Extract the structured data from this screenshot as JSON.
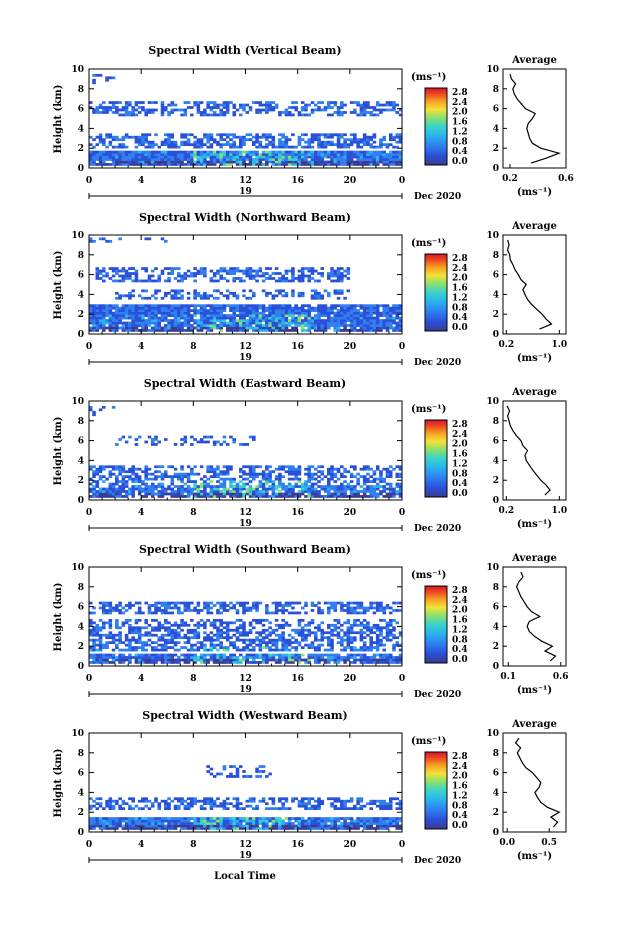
{
  "figure": {
    "date_label": "Dec 2020",
    "day_label": "19",
    "x_axis_label": "Local Time",
    "y_axis_label": "Height (km)",
    "colorbar_unit": "(ms⁻¹)",
    "avg_title": "Average",
    "avg_unit": "(ms⁻¹)",
    "colorbar_ticks": [
      "2.8",
      "2.4",
      "2.0",
      "1.6",
      "1.2",
      "0.8",
      "0.4",
      "0.0"
    ],
    "time_ticks": [
      "0",
      "4",
      "8",
      "12",
      "16",
      "20",
      "0"
    ],
    "height_ticks": [
      "0",
      "2",
      "4",
      "6",
      "8",
      "10"
    ]
  },
  "colors": {
    "scale": [
      "#3b3b8f",
      "#2a50d8",
      "#2f7ff0",
      "#2ab3ef",
      "#39d3c8",
      "#8fe06a",
      "#f2e23a",
      "#f5a623",
      "#ef4a21",
      "#d0152d"
    ],
    "profile_line": "#000000"
  },
  "chart_data": [
    {
      "type": "heatmap",
      "title": "Spectral Width (Vertical Beam)",
      "xlabel": "",
      "ylabel": "Height (km)",
      "xlim": [
        0,
        24
      ],
      "ylim": [
        0,
        10
      ],
      "clim": [
        0.0,
        2.8
      ],
      "avg_profile": {
        "title": "Average",
        "xlabel": "(ms⁻¹)",
        "xlim": [
          0.15,
          0.6
        ],
        "xticks": [
          "0.2",
          "0.6"
        ],
        "height": [
          0.5,
          1,
          1.5,
          2,
          2.5,
          3,
          3.5,
          4,
          4.5,
          5,
          5.5,
          6,
          6.5,
          7,
          7.5,
          8,
          8.5,
          9,
          9.5
        ],
        "values": [
          0.35,
          0.46,
          0.55,
          0.42,
          0.36,
          0.34,
          0.33,
          0.32,
          0.33,
          0.36,
          0.38,
          0.31,
          0.28,
          0.25,
          0.23,
          0.22,
          0.24,
          0.21,
          0.2
        ]
      }
    },
    {
      "type": "heatmap",
      "title": "Spectral Width (Northward Beam)",
      "xlabel": "",
      "ylabel": "Height (km)",
      "xlim": [
        0,
        24
      ],
      "ylim": [
        0,
        10
      ],
      "clim": [
        0.0,
        2.8
      ],
      "avg_profile": {
        "title": "Average",
        "xlabel": "(ms⁻¹)",
        "xlim": [
          0.15,
          1.1
        ],
        "xticks": [
          "0.2",
          "1.0"
        ],
        "height": [
          0.5,
          1,
          1.5,
          2,
          2.5,
          3,
          3.5,
          4,
          4.5,
          5,
          5.5,
          6,
          6.5,
          7,
          7.5,
          8,
          8.5,
          9,
          9.5
        ],
        "values": [
          0.7,
          0.88,
          0.8,
          0.74,
          0.66,
          0.58,
          0.52,
          0.48,
          0.45,
          0.5,
          0.42,
          0.38,
          0.33,
          0.3,
          0.26,
          0.25,
          0.22,
          0.24,
          0.22
        ]
      }
    },
    {
      "type": "heatmap",
      "title": "Spectral Width (Eastward Beam)",
      "xlabel": "",
      "ylabel": "Height (km)",
      "xlim": [
        0,
        24
      ],
      "ylim": [
        0,
        10
      ],
      "clim": [
        0.0,
        2.8
      ],
      "avg_profile": {
        "title": "Average",
        "xlabel": "(ms⁻¹)",
        "xlim": [
          0.15,
          1.1
        ],
        "xticks": [
          "0.2",
          "1.0"
        ],
        "height": [
          0.5,
          1,
          1.5,
          2,
          2.5,
          3,
          3.5,
          4,
          4.5,
          5,
          5.5,
          6,
          6.5,
          7,
          7.5,
          8,
          8.5,
          9,
          9.5
        ],
        "values": [
          0.78,
          0.86,
          0.8,
          0.72,
          0.66,
          0.6,
          0.55,
          0.5,
          0.48,
          0.52,
          0.45,
          0.42,
          0.35,
          0.3,
          0.26,
          0.24,
          0.22,
          0.25,
          0.21
        ]
      }
    },
    {
      "type": "heatmap",
      "title": "Spectral Width (Southward Beam)",
      "xlabel": "",
      "ylabel": "Height (km)",
      "xlim": [
        0,
        24
      ],
      "ylim": [
        0,
        10
      ],
      "clim": [
        0.0,
        2.8
      ],
      "avg_profile": {
        "title": "Average",
        "xlabel": "(ms⁻¹)",
        "xlim": [
          0.05,
          0.65
        ],
        "xticks": [
          "0.1",
          "0.6"
        ],
        "height": [
          0.5,
          1,
          1.5,
          2,
          2.5,
          3,
          3.5,
          4,
          4.5,
          5,
          5.5,
          6,
          6.5,
          7,
          7.5,
          8,
          8.5,
          9,
          9.5
        ],
        "values": [
          0.5,
          0.55,
          0.45,
          0.52,
          0.42,
          0.35,
          0.3,
          0.28,
          0.3,
          0.4,
          0.32,
          0.28,
          0.25,
          0.22,
          0.2,
          0.18,
          0.2,
          0.24,
          0.22
        ]
      }
    },
    {
      "type": "heatmap",
      "title": "Spectral Width (Westward Beam)",
      "xlabel": "Local Time",
      "ylabel": "Height (km)",
      "xlim": [
        0,
        24
      ],
      "ylim": [
        0,
        10
      ],
      "clim": [
        0.0,
        2.8
      ],
      "avg_profile": {
        "title": "Average",
        "xlabel": "(ms⁻¹)",
        "xlim": [
          -0.05,
          0.7
        ],
        "xticks": [
          "0.0",
          "0.5"
        ],
        "height": [
          0.5,
          1,
          1.5,
          2,
          2.5,
          3,
          3.5,
          4,
          4.5,
          5,
          5.5,
          6,
          6.5,
          7,
          7.5,
          8,
          8.5,
          9,
          9.5
        ],
        "values": [
          0.55,
          0.6,
          0.52,
          0.62,
          0.48,
          0.4,
          0.36,
          0.33,
          0.38,
          0.4,
          0.35,
          0.3,
          0.22,
          0.18,
          0.15,
          0.12,
          0.16,
          0.1,
          0.14
        ]
      }
    }
  ]
}
